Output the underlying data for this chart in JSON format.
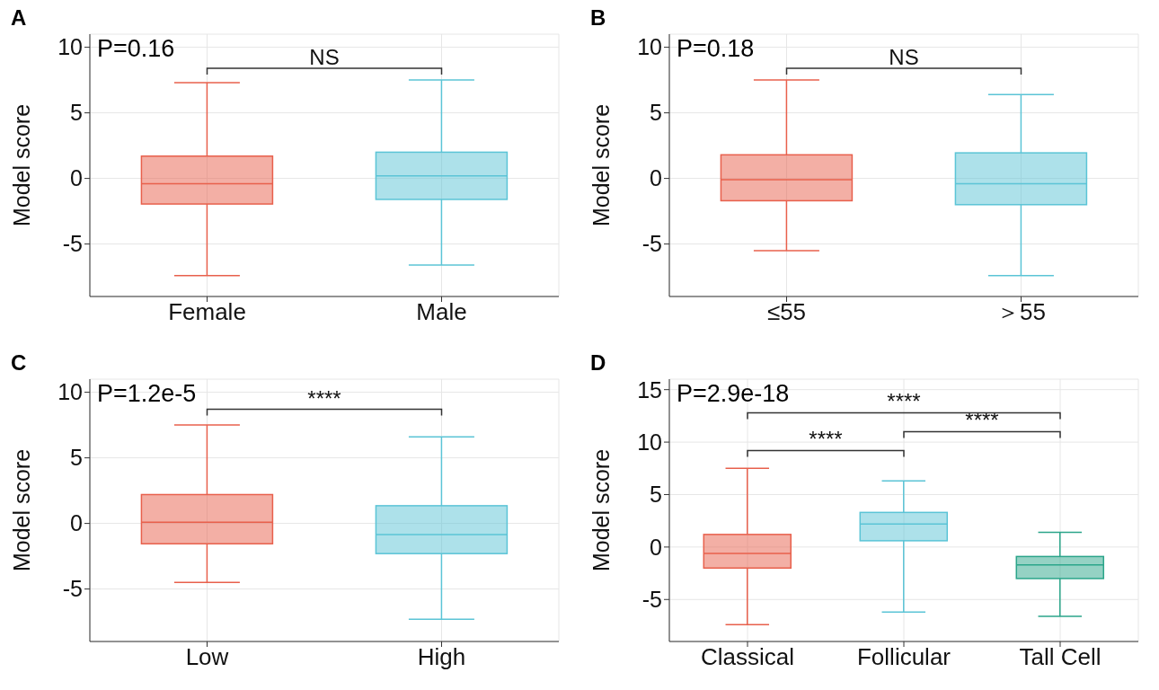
{
  "chart_data": [
    {
      "type": "box",
      "annotations": [
        "A",
        "P=0.16",
        "NS"
      ],
      "ylabel": "Model score",
      "categories": [
        "Female",
        "Male"
      ],
      "colors": [
        "#e8604c",
        "#5bc4d6"
      ],
      "boxes": [
        {
          "low": -7.4,
          "q1": -1.95,
          "median": -0.4,
          "q3": 1.7,
          "high": 7.3
        },
        {
          "low": -6.6,
          "q1": -1.6,
          "median": 0.2,
          "q3": 2.0,
          "high": 7.5
        }
      ],
      "ylim": [
        -9,
        11
      ],
      "yticks": [
        -5,
        0,
        5,
        10
      ],
      "grid": true
    },
    {
      "type": "box",
      "annotations": [
        "B",
        "P=0.18",
        "NS"
      ],
      "ylabel": "Model score",
      "categories": [
        "≤55",
        "＞55"
      ],
      "colors": [
        "#e8604c",
        "#5bc4d6"
      ],
      "boxes": [
        {
          "low": -5.5,
          "q1": -1.7,
          "median": -0.1,
          "q3": 1.8,
          "high": 7.5
        },
        {
          "low": -7.4,
          "q1": -2.0,
          "median": -0.4,
          "q3": 1.95,
          "high": 6.4
        }
      ],
      "ylim": [
        -9,
        11
      ],
      "yticks": [
        -5,
        0,
        5,
        10
      ],
      "grid": true
    },
    {
      "type": "box",
      "annotations": [
        "C",
        "P=1.2e-5",
        "****"
      ],
      "ylabel": "Model score",
      "categories": [
        "Low",
        "High"
      ],
      "colors": [
        "#e8604c",
        "#5bc4d6"
      ],
      "boxes": [
        {
          "low": -4.5,
          "q1": -1.55,
          "median": 0.1,
          "q3": 2.2,
          "high": 7.5
        },
        {
          "low": -7.3,
          "q1": -2.3,
          "median": -0.85,
          "q3": 1.35,
          "high": 6.6
        }
      ],
      "ylim": [
        -9,
        11
      ],
      "yticks": [
        -5,
        0,
        5,
        10
      ],
      "grid": true
    },
    {
      "type": "box",
      "annotations": [
        "D",
        "P=2.9e-18",
        "****",
        "****",
        "****"
      ],
      "ylabel": "Model score",
      "categories": [
        "Classical",
        "Follicular",
        "Tall Cell"
      ],
      "colors": [
        "#e8604c",
        "#5bc4d6",
        "#2ba58a"
      ],
      "boxes": [
        {
          "low": -7.4,
          "q1": -2.0,
          "median": -0.6,
          "q3": 1.2,
          "high": 7.5
        },
        {
          "low": -6.2,
          "q1": 0.6,
          "median": 2.2,
          "q3": 3.3,
          "high": 6.3
        },
        {
          "low": -6.6,
          "q1": -3.0,
          "median": -1.7,
          "q3": -0.9,
          "high": 1.4
        }
      ],
      "ylim": [
        -9,
        16
      ],
      "yticks": [
        -5,
        0,
        5,
        10,
        15
      ],
      "grid": true
    }
  ]
}
